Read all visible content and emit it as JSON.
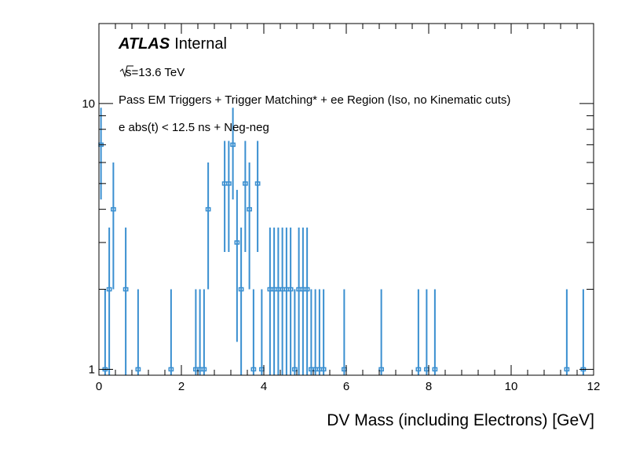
{
  "chart_data": {
    "type": "histogram",
    "experiment": "ATLAS",
    "status": "Internal",
    "energy_label": "s=13.6 TeV",
    "selection": "Pass EM Triggers + Trigger Matching* + ee Region (Iso, no Kinematic cuts)",
    "extra_cut": "e abs(t) < 12.5 ns + Neg-neg",
    "xlabel": "DV Mass (including Electrons) [GeV]",
    "ylabel": "",
    "xlim": [
      0,
      12
    ],
    "ylim": [
      0.95,
      20
    ],
    "yscale": "log",
    "bin_width": 0.1,
    "color": "#3a8fd0",
    "x_ticks": [
      "0",
      "2",
      "4",
      "6",
      "8",
      "10",
      "12"
    ],
    "y_ticks": [
      "1",
      "10"
    ],
    "bins": [
      [
        0.0,
        7
      ],
      [
        0.1,
        1
      ],
      [
        0.2,
        2
      ],
      [
        0.3,
        4
      ],
      [
        0.6,
        2
      ],
      [
        0.9,
        1
      ],
      [
        1.7,
        1
      ],
      [
        2.3,
        1
      ],
      [
        2.4,
        1
      ],
      [
        2.5,
        1
      ],
      [
        2.6,
        4
      ],
      [
        3.0,
        5
      ],
      [
        3.1,
        5
      ],
      [
        3.2,
        7
      ],
      [
        3.3,
        3
      ],
      [
        3.4,
        2
      ],
      [
        3.5,
        5
      ],
      [
        3.6,
        4
      ],
      [
        3.7,
        1
      ],
      [
        3.8,
        5
      ],
      [
        3.9,
        1
      ],
      [
        4.1,
        2
      ],
      [
        4.2,
        2
      ],
      [
        4.3,
        2
      ],
      [
        4.4,
        2
      ],
      [
        4.5,
        2
      ],
      [
        4.6,
        2
      ],
      [
        4.7,
        1
      ],
      [
        4.8,
        2
      ],
      [
        4.9,
        2
      ],
      [
        5.0,
        2
      ],
      [
        5.1,
        1
      ],
      [
        5.2,
        1
      ],
      [
        5.3,
        1
      ],
      [
        5.4,
        1
      ],
      [
        5.9,
        1
      ],
      [
        6.8,
        1
      ],
      [
        7.7,
        1
      ],
      [
        7.9,
        1
      ],
      [
        8.1,
        1
      ],
      [
        11.3,
        1
      ],
      [
        11.7,
        1
      ]
    ]
  }
}
